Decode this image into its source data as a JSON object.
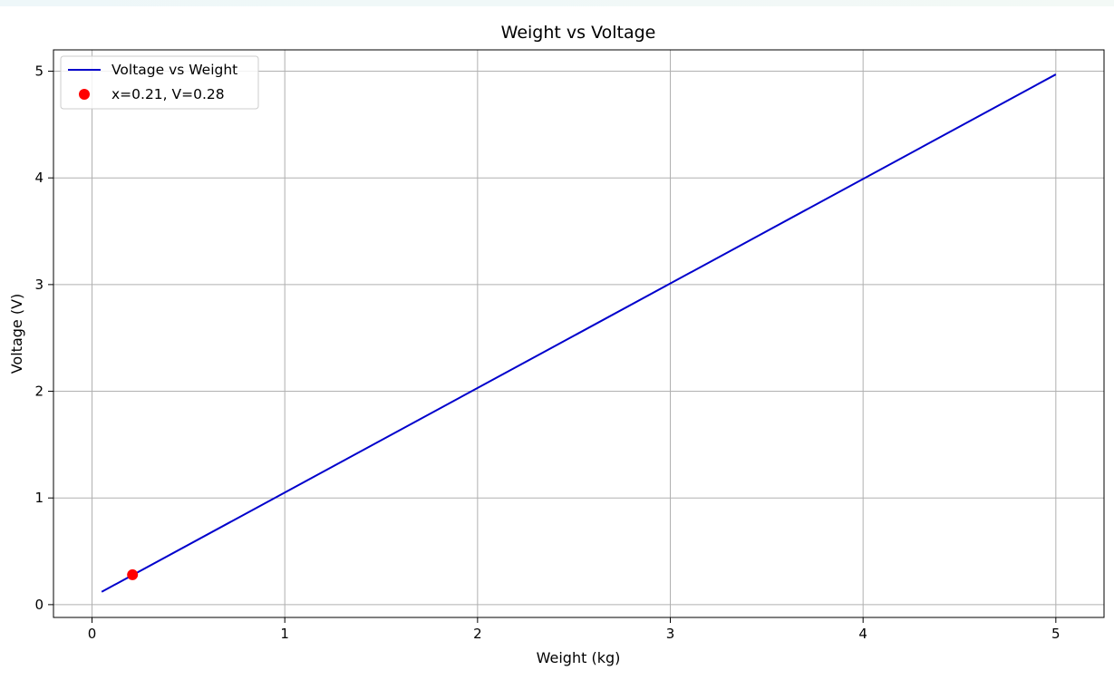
{
  "chart_data": {
    "type": "line",
    "title": "Weight vs Voltage",
    "xlabel": "Weight (kg)",
    "ylabel": "Voltage (V)",
    "xlim": [
      -0.2,
      5.25
    ],
    "ylim": [
      -0.12,
      5.2
    ],
    "xticks": [
      0,
      1,
      2,
      3,
      4,
      5
    ],
    "yticks": [
      0,
      1,
      2,
      3,
      4,
      5
    ],
    "grid": true,
    "legend_position": "top-left",
    "series": [
      {
        "name": "Voltage vs Weight",
        "type": "line",
        "color": "#0000cc",
        "x": [
          0.05,
          5.0
        ],
        "y": [
          0.12,
          4.97
        ]
      },
      {
        "name": "x=0.21, V=0.28",
        "type": "scatter",
        "color": "#ff0000",
        "x": [
          0.21
        ],
        "y": [
          0.28
        ]
      }
    ]
  }
}
